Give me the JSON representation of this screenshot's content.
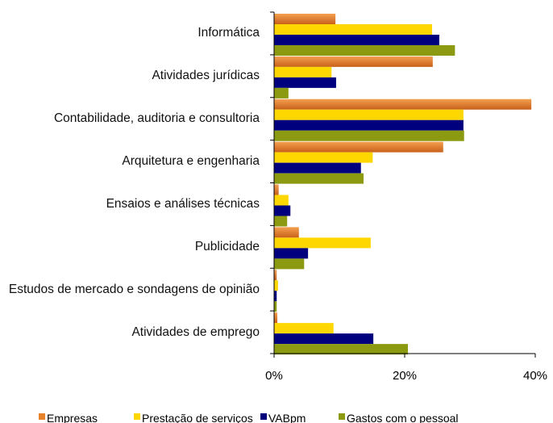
{
  "chart_data": {
    "type": "hbar",
    "categories": [
      "Informática",
      "Atividades jurídicas",
      "Contabilidade, auditoria e consultoria",
      "Arquitetura e engenharia",
      "Ensaios e análises técnicas",
      "Publicidade",
      "Estudos de mercado e sondagens de opinião",
      "Atividades de emprego"
    ],
    "series": [
      {
        "name": "Empresas",
        "color": "#e8822a",
        "values": [
          9.4,
          24.3,
          39.4,
          25.9,
          0.7,
          3.8,
          0.4,
          0.5
        ]
      },
      {
        "name": "Prestação de serviços",
        "color": "#ffd700",
        "values": [
          24.2,
          8.8,
          29.0,
          15.1,
          2.2,
          14.8,
          0.6,
          9.1
        ]
      },
      {
        "name": "VABpm",
        "color": "#00007f",
        "values": [
          25.3,
          9.5,
          29.0,
          13.3,
          2.5,
          5.2,
          0.4,
          15.2
        ]
      },
      {
        "name": "Gastos com o pessoal",
        "color": "#8b9a10",
        "values": [
          27.7,
          2.2,
          29.1,
          13.7,
          2.0,
          4.6,
          0.4,
          20.5
        ]
      }
    ],
    "xlim": [
      0,
      40
    ],
    "xticks": [
      {
        "value": 0,
        "label": "0%"
      },
      {
        "value": 20,
        "label": "20%"
      },
      {
        "value": 40,
        "label": "40%"
      }
    ]
  }
}
